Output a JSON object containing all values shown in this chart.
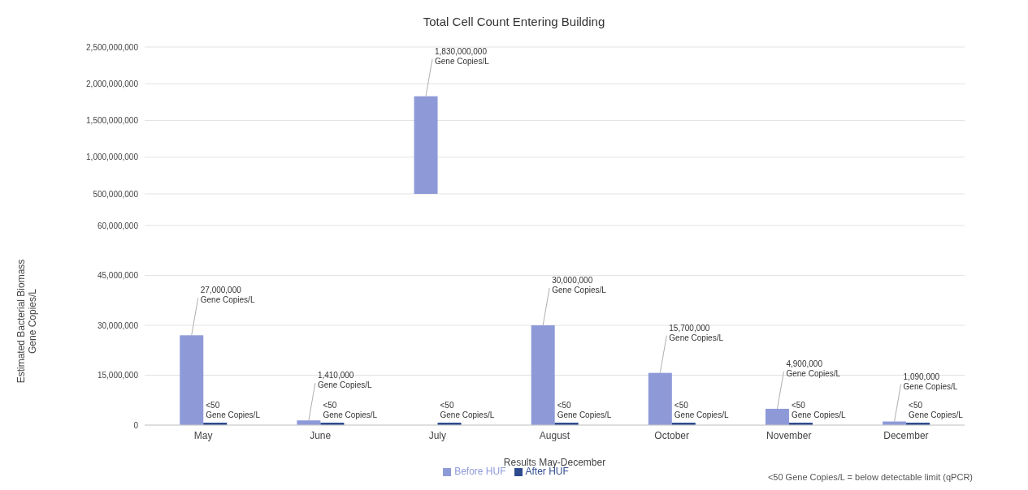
{
  "chart_data": [
    {
      "type": "bar",
      "title": "Total Cell Count Entering Building",
      "categories": [
        null,
        null,
        null,
        null,
        null,
        null,
        null
      ],
      "series": [
        {
          "color": "#8e9ad8",
          "values": [
            null,
            null,
            1830000000,
            null,
            null,
            null,
            null
          ],
          "value_labels": [
            null,
            null,
            "1,830,000,000\nGene Copies/L",
            null,
            null,
            null,
            null
          ]
        },
        {
          "color": "#2f4b8f",
          "values": [
            null,
            null,
            null,
            null,
            null,
            null,
            null
          ]
        }
      ],
      "ylim": [
        500000000,
        2500000000
      ],
      "yticks": [
        {
          "value": 500000000,
          "label": "500,000,000"
        },
        {
          "value": 1000000000,
          "label": "1,000,000,000"
        },
        {
          "value": 1500000000,
          "label": "1,500,000,000"
        },
        {
          "value": 2000000000,
          "label": "2,000,000,000"
        },
        {
          "value": 2500000000,
          "label": "2,500,000,000"
        }
      ],
      "grid": "y",
      "tick_labels": "y",
      "legend": false
    },
    {
      "type": "bar",
      "xlabel": "Results May-December",
      "ylabel": "Estimated Bacterial Biomass\nGene Copies/L",
      "categories": [
        "May",
        "June",
        "July",
        "August",
        "October",
        "November",
        "December"
      ],
      "series": [
        {
          "name": "Before HUF",
          "color": "#8e9ad8",
          "values": [
            27000000,
            1410000,
            null,
            30000000,
            15700000,
            4900000,
            1090000
          ],
          "value_labels": [
            "27,000,000\nGene Copies/L",
            "1,410,000\nGene Copies/L",
            null,
            "30,000,000\nGene Copies/L",
            "15,700,000\nGene Copies/L",
            "4,900,000\nGene Copies/L",
            "1,090,000\nGene Copies/L"
          ]
        },
        {
          "name": "After HUF",
          "color": "#2f4b8f",
          "values": [
            0,
            0,
            0,
            0,
            0,
            0,
            0
          ],
          "value_labels": [
            "<50\nGene Copies/L",
            "<50\nGene Copies/L",
            "<50\nGene Copies/L",
            "<50\nGene Copies/L",
            "<50\nGene Copies/L",
            "<50\nGene Copies/L",
            "<50\nGene Copies/L"
          ]
        }
      ],
      "ylim": [
        0,
        60000000
      ],
      "yticks": [
        0,
        {
          "value": 15000000,
          "label": "15,000,000"
        },
        {
          "value": 30000000,
          "label": "30,000,000"
        },
        {
          "value": 45000000,
          "label": "45,000,000"
        },
        {
          "value": 60000000,
          "label": "60,000,000"
        }
      ],
      "grid": "y",
      "legend": "bottom",
      "annotations": [
        "<50 Gene Copies/L = below detectable limit (qPCR)"
      ]
    }
  ]
}
